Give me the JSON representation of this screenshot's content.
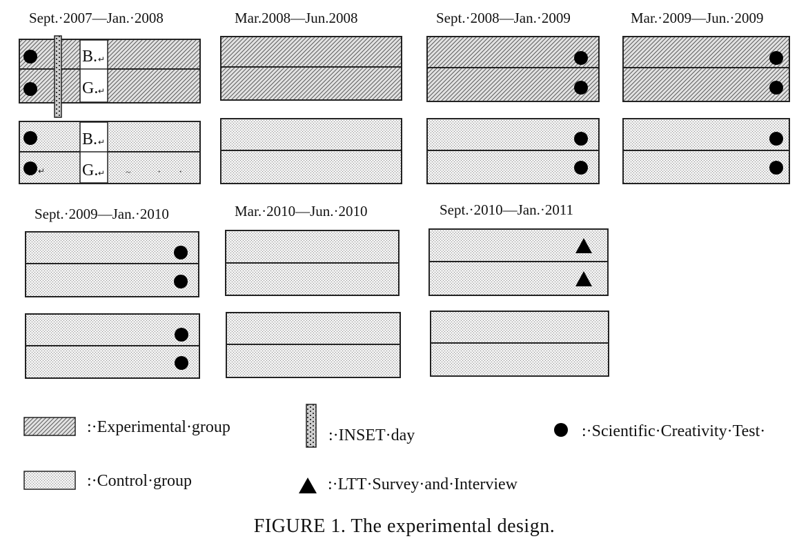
{
  "periods": [
    {
      "label": "Sept.·2007—Jan.·2008"
    },
    {
      "label": "Mar.2008—Jun.2008"
    },
    {
      "label": "Sept.·2008—Jan.·2009"
    },
    {
      "label": "Mar.·2009—Jun.·2009"
    },
    {
      "label": "Sept.·2009—Jan.·2010"
    },
    {
      "label": "Mar.·2010—Jun.·2010"
    },
    {
      "label": "Sept.·2010—Jan.·2011"
    }
  ],
  "markers": {
    "boys": "B.",
    "girls": "G.",
    "return_mark": "↵",
    "return_mark_left": "↵",
    "tilde_mark": "~",
    "dot_mark_1": "·",
    "dot_mark_2": "·"
  },
  "legend": {
    "experimental": ":·Experimental·group",
    "control": ":·Control·group",
    "inset": ":·INSET·day",
    "test": ":·Scientific·Creativity·Test·",
    "ltt": ":·LTT·Survey·and·Interview"
  },
  "caption": "FIGURE 1. The experimental design.",
  "colors": {
    "stroke": "#222222",
    "experimental_fill": "hatch",
    "control_fill": "stipple"
  }
}
